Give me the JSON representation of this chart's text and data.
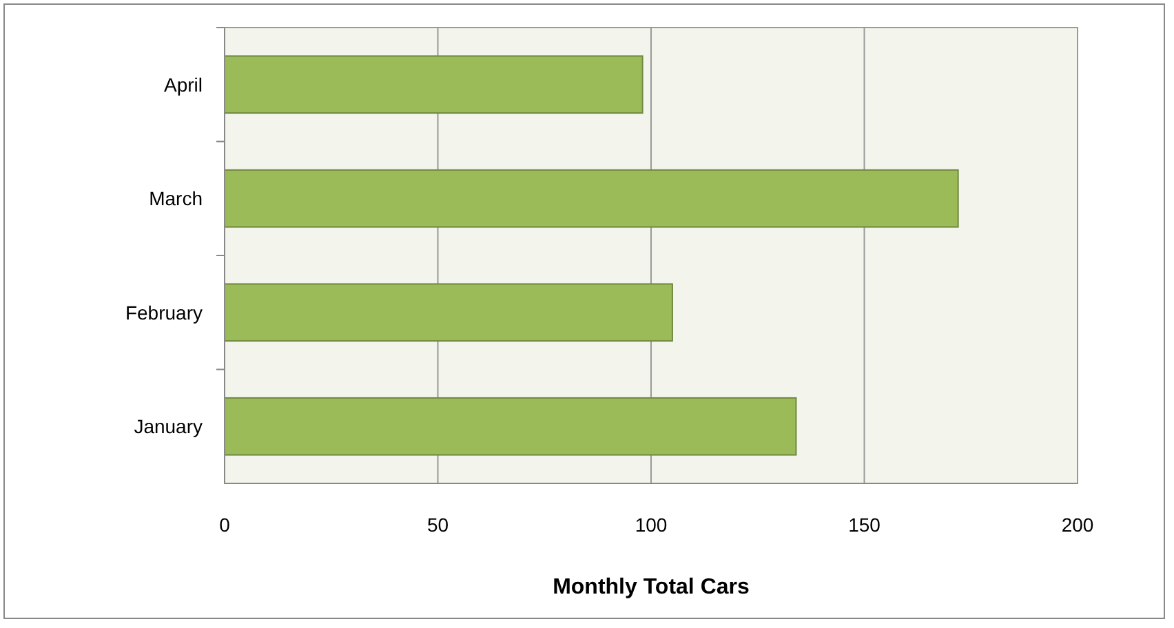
{
  "chart_data": {
    "type": "bar",
    "orientation": "horizontal",
    "xlabel": "Monthly Total Cars",
    "categories": [
      "April",
      "March",
      "February",
      "January"
    ],
    "values": [
      98,
      172,
      105,
      134
    ],
    "color": "#9bbb59",
    "xlim": [
      0,
      200
    ],
    "xticks": [
      0,
      50,
      100,
      150,
      200
    ],
    "grid": "x"
  }
}
